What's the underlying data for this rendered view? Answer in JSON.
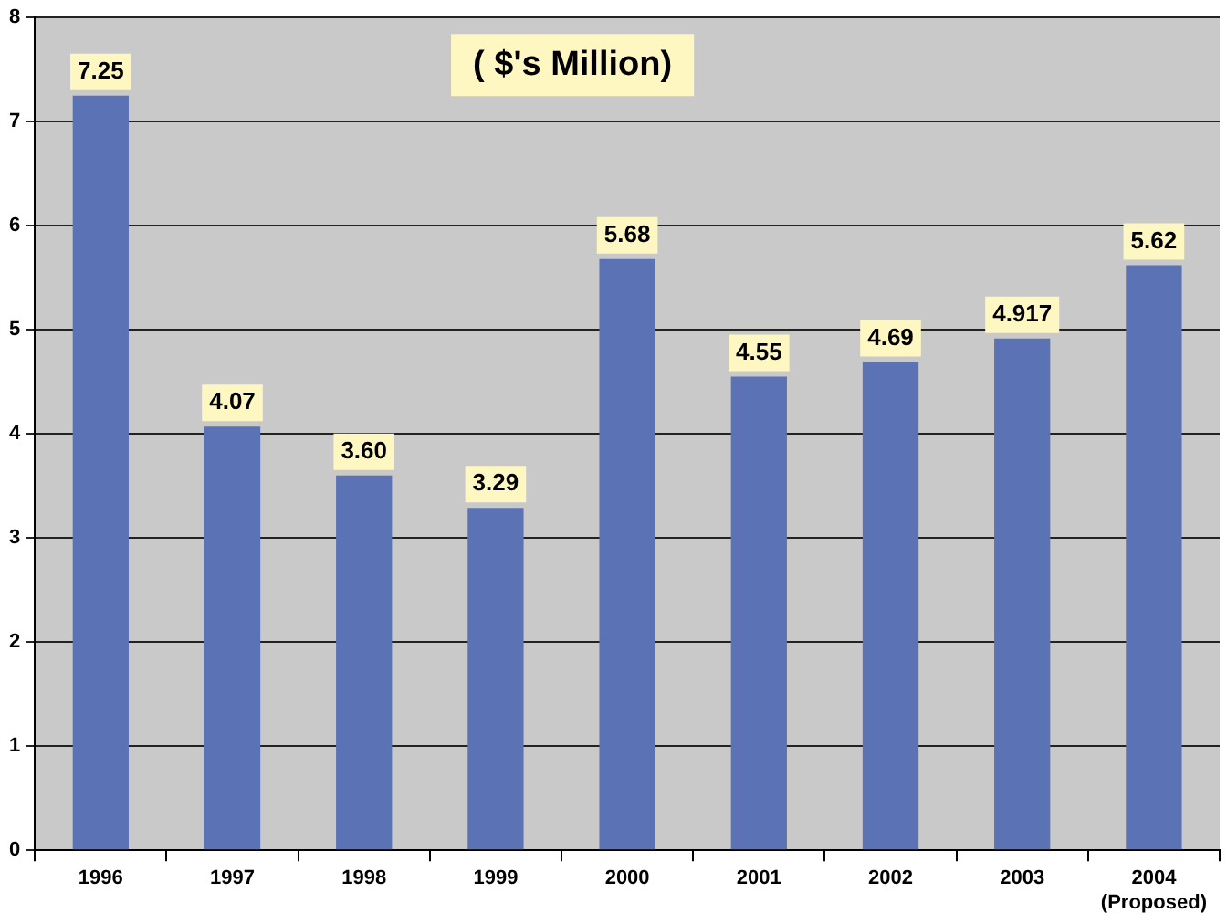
{
  "chart_data": {
    "type": "bar",
    "title": "( $'s Million)",
    "categories": [
      "1996",
      "1997",
      "1998",
      "1999",
      "2000",
      "2001",
      "2002",
      "2003",
      "2004\n(Proposed)"
    ],
    "values": [
      7.25,
      4.07,
      3.6,
      3.29,
      5.68,
      4.55,
      4.69,
      4.917,
      5.62
    ],
    "value_labels": [
      "7.25",
      "4.07",
      "3.60",
      "3.29",
      "5.68",
      "4.55",
      "4.69",
      "4.917",
      "5.62"
    ],
    "color": "#5b72b4",
    "ylim": [
      0,
      8
    ],
    "yticks": [
      0,
      1,
      2,
      3,
      4,
      5,
      6,
      7,
      8
    ],
    "grid": "y",
    "legend": false
  }
}
